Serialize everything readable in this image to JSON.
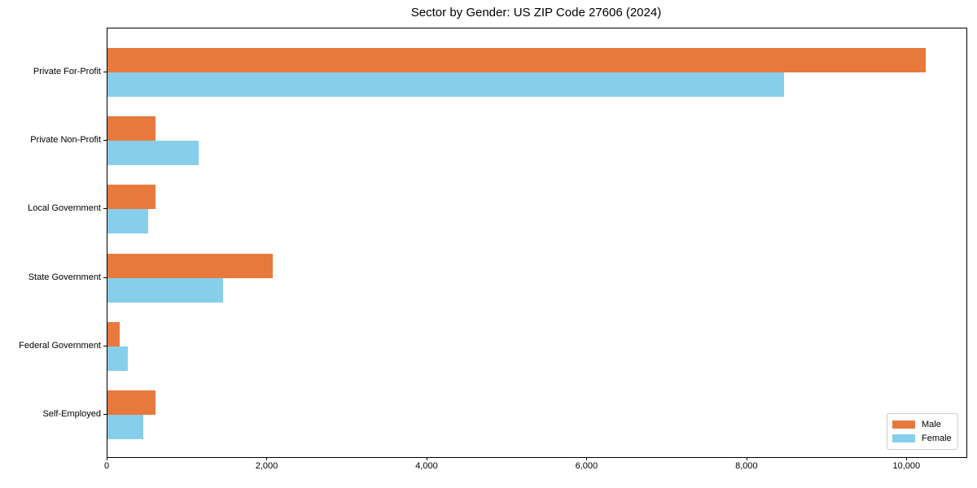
{
  "chart_data": {
    "type": "bar",
    "orientation": "horizontal",
    "title": "Sector by Gender: US ZIP Code 27606 (2024)",
    "categories": [
      "Private For-Profit",
      "Private Non-Profit",
      "Local Government",
      "State Government",
      "Federal Government",
      "Self-Employed"
    ],
    "series": [
      {
        "name": "Male",
        "color": "#e8793d",
        "values": [
          10230,
          600,
          600,
          2070,
          150,
          600
        ]
      },
      {
        "name": "Female",
        "color": "#87ceeb",
        "values": [
          8460,
          1140,
          510,
          1450,
          250,
          450
        ]
      }
    ],
    "xlabel": "",
    "ylabel": "",
    "xlim": [
      0,
      10740
    ],
    "xticks": {
      "values": [
        0,
        2000,
        4000,
        6000,
        8000,
        10000
      ],
      "labels": [
        "0",
        "2,000",
        "4,000",
        "6,000",
        "8,000",
        "10,000"
      ]
    },
    "grid": false,
    "legend": {
      "position": "lower right",
      "entries": [
        "Male",
        "Female"
      ]
    }
  }
}
